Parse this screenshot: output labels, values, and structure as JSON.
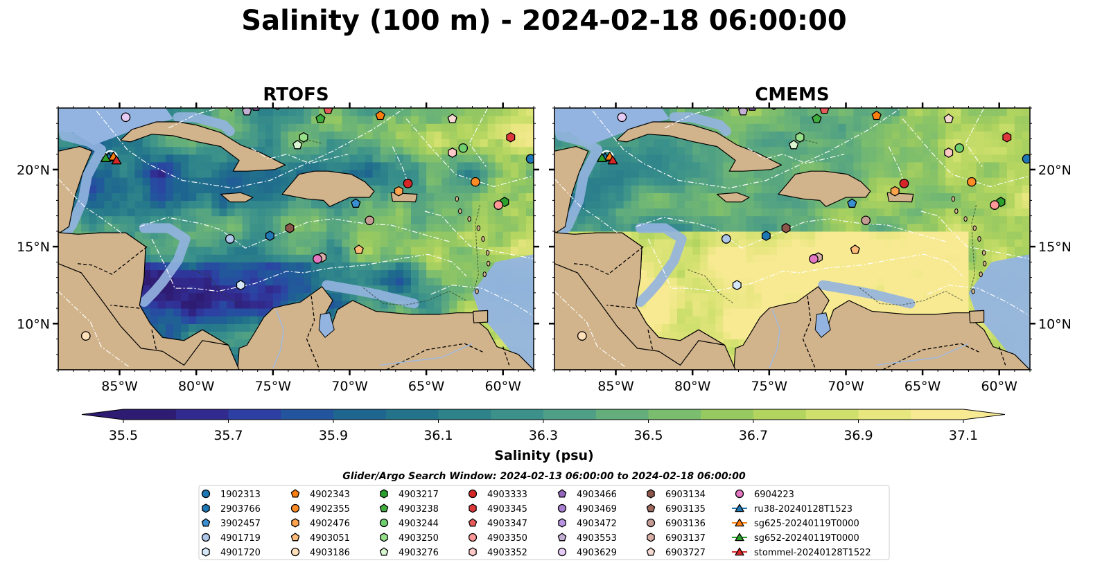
{
  "figure": {
    "title": "Salinity (100 m) - 2024-02-18 06:00:00"
  },
  "chart_data": {
    "type": "map",
    "panels": [
      {
        "title": "RTOFS"
      },
      {
        "title": "CMEMS"
      }
    ],
    "lon_range": [
      -89,
      -58
    ],
    "lat_range": [
      7,
      24
    ],
    "x_ticks": [
      -85,
      -80,
      -75,
      -70,
      -65,
      -60
    ],
    "x_tick_labels": [
      "85°W",
      "80°W",
      "75°W",
      "70°W",
      "65°W",
      "60°W"
    ],
    "y_ticks": [
      10,
      15,
      20
    ],
    "y_tick_labels": [
      "10°N",
      "15°N",
      "20°N"
    ],
    "colorbar": {
      "label": "Salinity (psu)",
      "min": 35.5,
      "max": 37.1,
      "extend": "both",
      "ticks": [
        35.5,
        35.7,
        35.9,
        36.1,
        36.3,
        36.5,
        36.7,
        36.9,
        37.1
      ],
      "tick_labels": [
        "35.5",
        "35.7",
        "35.9",
        "36.1",
        "36.3",
        "36.5",
        "36.7",
        "36.9",
        "37.1"
      ],
      "colors": [
        "#2e1b72",
        "#322b8f",
        "#2d3fa3",
        "#23559e",
        "#1e6590",
        "#23748b",
        "#2e838b",
        "#3c928a",
        "#4e9f85",
        "#63ae7b",
        "#7bbd6e",
        "#97c961",
        "#b3d560",
        "#cfe06d",
        "#e7e67f",
        "#f8ea93"
      ]
    },
    "land_color": "#d2b48c",
    "shelf_color": "#93b4e0",
    "deep_color": "#2b1b6e",
    "search_window": "Glider/Argo Search Window: 2024-02-13 06:00:00 to 2024-02-18 06:00:00",
    "series": [
      {
        "name": "1902313",
        "marker": "circle",
        "color": "#1f77b4",
        "lon": -58.2,
        "lat": 20.7
      },
      {
        "name": "2903766",
        "marker": "hexagon",
        "color": "#1f77b4",
        "lon": -75.2,
        "lat": 15.7
      },
      {
        "name": "3902457",
        "marker": "pentagon",
        "color": "#3a8fd1",
        "lon": -69.6,
        "lat": 17.8
      },
      {
        "name": "4901719",
        "marker": "circle",
        "color": "#aec7e8",
        "lon": -77.8,
        "lat": 15.5
      },
      {
        "name": "4901720",
        "marker": "hexagon",
        "color": "#d6e8f7",
        "lon": -77.1,
        "lat": 12.5
      },
      {
        "name": "4902343",
        "marker": "pentagon",
        "color": "#ff7f0e",
        "lon": -68.0,
        "lat": 23.5
      },
      {
        "name": "4902355",
        "marker": "circle",
        "color": "#ff8c24",
        "lon": -61.8,
        "lat": 19.2
      },
      {
        "name": "4902476",
        "marker": "hexagon",
        "color": "#ffa34d",
        "lon": -66.8,
        "lat": 18.6
      },
      {
        "name": "4903051",
        "marker": "pentagon",
        "color": "#ffbb78",
        "lon": -69.4,
        "lat": 14.8
      },
      {
        "name": "4903186",
        "marker": "circle",
        "color": "#ffe0b8",
        "lon": -87.2,
        "lat": 9.2
      },
      {
        "name": "4903217",
        "marker": "hexagon",
        "color": "#2ca02c",
        "lon": -59.9,
        "lat": 17.9
      },
      {
        "name": "4903238",
        "marker": "pentagon",
        "color": "#3fae3f",
        "lon": -71.9,
        "lat": 23.3
      },
      {
        "name": "4903244",
        "marker": "circle",
        "color": "#6fcf6f",
        "lon": -62.6,
        "lat": 21.4
      },
      {
        "name": "4903250",
        "marker": "hexagon",
        "color": "#98df8a",
        "lon": -73.0,
        "lat": 22.1
      },
      {
        "name": "4903276",
        "marker": "pentagon",
        "color": "#d8f5d0",
        "lon": -73.4,
        "lat": 21.6
      },
      {
        "name": "4903333",
        "marker": "circle",
        "color": "#d62728",
        "lon": -66.2,
        "lat": 19.1
      },
      {
        "name": "4903345",
        "marker": "hexagon",
        "color": "#e0383a",
        "lon": -59.5,
        "lat": 22.1
      },
      {
        "name": "4903347",
        "marker": "pentagon",
        "color": "#e85a5a",
        "lon": -71.4,
        "lat": 23.9
      },
      {
        "name": "4903350",
        "marker": "circle",
        "color": "#ff9896",
        "lon": -60.3,
        "lat": 17.7
      },
      {
        "name": "4903352",
        "marker": "hexagon",
        "color": "#ffc9c8",
        "lon": -63.3,
        "lat": 21.1
      },
      {
        "name": "4903466",
        "marker": "pentagon",
        "color": "#9467bd",
        "lon": -76.1,
        "lat": 24.1
      },
      {
        "name": "4903469",
        "marker": "circle",
        "color": "#a97fd1",
        "lon": -75.8,
        "lat": 24.4
      },
      {
        "name": "4903472",
        "marker": "hexagon",
        "color": "#b894e0",
        "lon": -74.7,
        "lat": 24.2
      },
      {
        "name": "4903553",
        "marker": "pentagon",
        "color": "#c5b0d5",
        "lon": -76.7,
        "lat": 23.8
      },
      {
        "name": "4903629",
        "marker": "circle",
        "color": "#e6ccf5",
        "lon": -84.6,
        "lat": 23.4
      },
      {
        "name": "6903134",
        "marker": "hexagon",
        "color": "#8c564b",
        "lon": -73.9,
        "lat": 16.2
      },
      {
        "name": "6903135",
        "marker": "pentagon",
        "color": "#a06a5e",
        "lon": -75.3,
        "lat": 24.5
      },
      {
        "name": "6903136",
        "marker": "circle",
        "color": "#c49c94",
        "lon": -68.7,
        "lat": 16.7
      },
      {
        "name": "6903137",
        "marker": "hexagon",
        "color": "#d9b0a8",
        "lon": -71.8,
        "lat": 14.3
      },
      {
        "name": "6903727",
        "marker": "pentagon",
        "color": "#f7d9d3",
        "lon": -63.3,
        "lat": 23.3
      },
      {
        "name": "6904223",
        "marker": "circle",
        "color": "#e377c2",
        "lon": -72.1,
        "lat": 14.2
      },
      {
        "name": "ru38-20240128T1523",
        "marker": "triangle",
        "color": "#1f77b4",
        "lon": -85.7,
        "lat": 20.8
      },
      {
        "name": "sg625-20240119T0000",
        "marker": "triangle",
        "color": "#ff7f0e",
        "lon": -85.4,
        "lat": 20.85
      },
      {
        "name": "sg652-20240119T0000",
        "marker": "triangle",
        "color": "#2ca02c",
        "lon": -85.9,
        "lat": 20.75
      },
      {
        "name": "stommel-20240128T1522",
        "marker": "triangle",
        "color": "#d62728",
        "lon": -85.2,
        "lat": 20.6
      }
    ]
  }
}
